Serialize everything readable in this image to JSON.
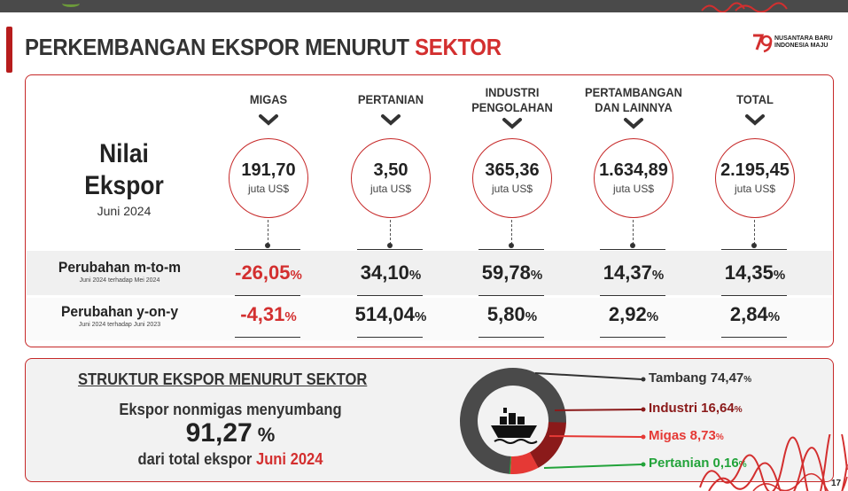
{
  "header": {
    "title_main": "PERKEMBANGAN EKSPOR MENURUT ",
    "title_highlight": "SEKTOR",
    "logo_line1": "NUSANTARA BARU",
    "logo_line2": "INDONESIA MAJU"
  },
  "nilai": {
    "line1": "Nilai",
    "line2": "Ekspor",
    "period": "Juni 2024"
  },
  "sectors": [
    {
      "label1": "MIGAS",
      "label2": "",
      "value": "191,70",
      "unit": "juta US$",
      "mtm": "-26,05",
      "yoy": "-4,31"
    },
    {
      "label1": "PERTANIAN",
      "label2": "",
      "value": "3,50",
      "unit": "juta US$",
      "mtm": "34,10",
      "yoy": "514,04"
    },
    {
      "label1": "INDUSTRI",
      "label2": "PENGOLAHAN",
      "value": "365,36",
      "unit": "juta US$",
      "mtm": "59,78",
      "yoy": "5,80"
    },
    {
      "label1": "PERTAMBANGAN",
      "label2": "DAN LAINNYA",
      "value": "1.634,89",
      "unit": "juta US$",
      "mtm": "14,37",
      "yoy": "2,92"
    },
    {
      "label1": "TOTAL",
      "label2": "",
      "value": "2.195,45",
      "unit": "juta US$",
      "mtm": "14,35",
      "yoy": "2,84"
    }
  ],
  "pct_suffix": "%",
  "rows": {
    "mtm_label": "Perubahan m-to-m",
    "mtm_note": "Juni 2024 terhadap Mei 2024",
    "yoy_label": "Perubahan y-on-y",
    "yoy_note": "Juni 2024 terhadap Juni 2023"
  },
  "structure": {
    "title": "STRUKTUR EKSPOR MENURUT SEKTOR",
    "subtitle": "Ekspor nonmigas menyumbang",
    "value": "91,27",
    "value_suffix": " %",
    "footer_prefix": "dari total ekspor ",
    "footer_period": "Juni 2024"
  },
  "donut": {
    "segments": [
      {
        "name": "Tambang",
        "value": 74.47,
        "label": "Tambang 74,47",
        "color": "#4a4a4a",
        "text_color": "#333333"
      },
      {
        "name": "Industri",
        "value": 16.64,
        "label": "Industri 16,64",
        "color": "#8b1a1a",
        "text_color": "#8b1a1a"
      },
      {
        "name": "Migas",
        "value": 8.73,
        "label": "Migas 8,73",
        "color": "#e53935",
        "text_color": "#e53935"
      },
      {
        "name": "Pertanian",
        "value": 0.16,
        "label": "Pertanian 0,16",
        "color": "#22a33a",
        "text_color": "#22a33a"
      }
    ],
    "icon": "ship-icon"
  },
  "page_number": "17",
  "colors": {
    "accent": "#d32f2f",
    "dark": "#333333"
  }
}
